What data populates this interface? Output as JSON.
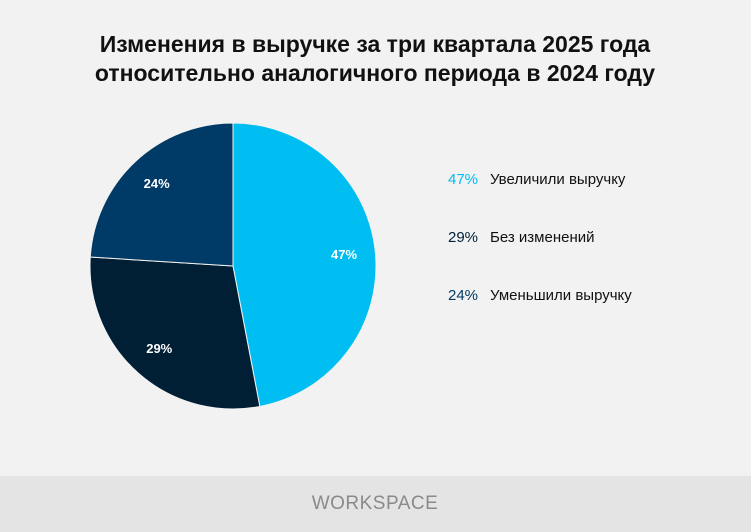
{
  "chart_data": {
    "type": "pie",
    "title": [
      "Изменения в выручке за три квартала 2025 года",
      "относительно аналогичного периода в 2024 году"
    ],
    "categories": [
      "Увеличили выручку",
      "Без изменений",
      "Уменьшили выручку"
    ],
    "values": [
      47,
      29,
      24
    ],
    "value_labels": [
      "47%",
      "29%",
      "24%"
    ],
    "colors": [
      "#00bdf2",
      "#001f35",
      "#003a66"
    ],
    "legend": "right"
  },
  "footer": {
    "brand": "WORKSPACE"
  }
}
